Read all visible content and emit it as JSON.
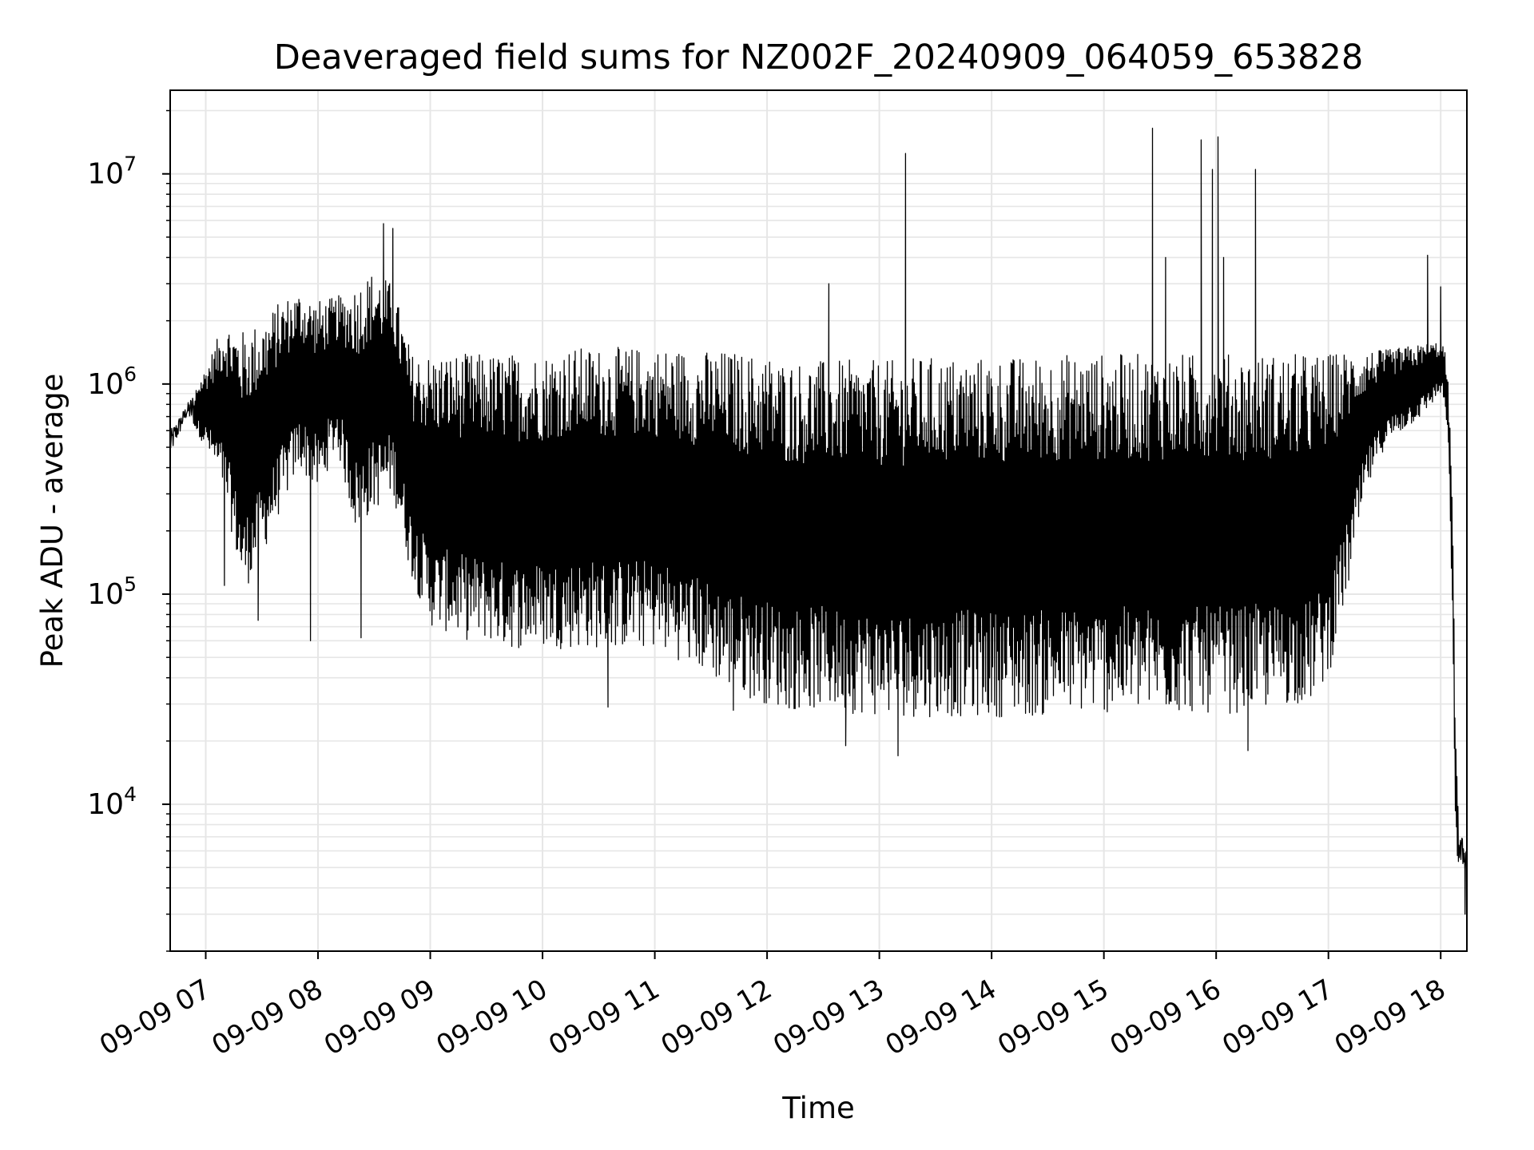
{
  "chart_data": {
    "type": "line",
    "title": "Deaveraged field sums for NZ002F_20240909_064059_653828",
    "xlabel": "Time",
    "ylabel": "Peak ADU - average",
    "x_ticks": [
      "09-09 07",
      "09-09 08",
      "09-09 09",
      "09-09 10",
      "09-09 11",
      "09-09 12",
      "09-09 13",
      "09-09 14",
      "09-09 15",
      "09-09 16",
      "09-09 17",
      "09-09 18"
    ],
    "x_tick_hours": [
      7,
      8,
      9,
      10,
      11,
      12,
      13,
      14,
      15,
      16,
      17,
      18
    ],
    "xlim": [
      "09-09 06:41",
      "09-09 18:14"
    ],
    "y_scale": "log",
    "ylim": [
      2000,
      25000000
    ],
    "y_ticks": [
      {
        "value": 10000,
        "base": "10",
        "exp": "4"
      },
      {
        "value": 100000,
        "base": "10",
        "exp": "5"
      },
      {
        "value": 1000000,
        "base": "10",
        "exp": "6"
      },
      {
        "value": 10000000,
        "base": "10",
        "exp": "7"
      }
    ],
    "grid": true,
    "line_color": "#000000",
    "grid_color": "#e6e6e6",
    "series": [
      {
        "envelope": {
          "x": [
            "06:41",
            "06:50",
            "07:00",
            "07:10",
            "07:20",
            "07:30",
            "07:40",
            "07:50",
            "08:00",
            "08:10",
            "08:20",
            "08:30",
            "08:40",
            "08:50",
            "09:00",
            "09:10",
            "09:20",
            "09:30",
            "09:40",
            "09:50",
            "10:00",
            "10:10",
            "10:20",
            "10:30",
            "10:40",
            "10:50",
            "11:00",
            "11:10",
            "11:20",
            "11:30",
            "11:40",
            "11:50",
            "12:00",
            "12:10",
            "12:20",
            "12:30",
            "12:40",
            "12:50",
            "13:00",
            "13:10",
            "13:20",
            "13:30",
            "13:40",
            "13:50",
            "14:00",
            "14:10",
            "14:20",
            "14:30",
            "14:40",
            "14:50",
            "15:00",
            "15:10",
            "15:20",
            "15:30",
            "15:40",
            "15:50",
            "16:00",
            "16:10",
            "16:20",
            "16:30",
            "16:40",
            "16:50",
            "17:00",
            "17:10",
            "17:20",
            "17:30",
            "17:40",
            "17:50",
            "18:00",
            "18:02",
            "18:04",
            "18:06",
            "18:08",
            "18:10",
            "18:12",
            "18:14"
          ],
          "upper": [
            600000,
            800000,
            1200000,
            2000000,
            1800000,
            2000000,
            2500000,
            2800000,
            2500000,
            2600000,
            3000000,
            3500000,
            3000000,
            1400000,
            1400000,
            1400000,
            1400000,
            1400000,
            1400000,
            1400000,
            1400000,
            1500000,
            1500000,
            1500000,
            1500000,
            1500000,
            1500000,
            1500000,
            1450000,
            1450000,
            1450000,
            1400000,
            1400000,
            1300000,
            1300000,
            1300000,
            1300000,
            1300000,
            1300000,
            1300000,
            1350000,
            1350000,
            1350000,
            1350000,
            1350000,
            1350000,
            1350000,
            1400000,
            1400000,
            1400000,
            1400000,
            1400000,
            1400000,
            1400000,
            1400000,
            1400000,
            1400000,
            1400000,
            1400000,
            1400000,
            1400000,
            1400000,
            1400000,
            1450000,
            1450000,
            1450000,
            1500000,
            1550000,
            1600000,
            1500000,
            1000000,
            400000,
            20000,
            7000,
            7000,
            6500
          ],
          "lower": [
            450000,
            700000,
            500000,
            300000,
            100000,
            150000,
            250000,
            400000,
            300000,
            500000,
            200000,
            250000,
            300000,
            120000,
            70000,
            65000,
            60000,
            60000,
            55000,
            55000,
            55000,
            55000,
            55000,
            55000,
            55000,
            55000,
            55000,
            50000,
            45000,
            40000,
            35000,
            32000,
            30000,
            28000,
            28000,
            28000,
            27000,
            27000,
            26000,
            26000,
            26000,
            26000,
            26000,
            26000,
            26000,
            26000,
            26000,
            26000,
            27000,
            27000,
            27000,
            27000,
            27000,
            27000,
            27000,
            27000,
            27000,
            27000,
            28000,
            28000,
            30000,
            30000,
            40000,
            100000,
            300000,
            500000,
            600000,
            700000,
            900000,
            800000,
            500000,
            100000,
            6000,
            5000,
            5000,
            4500
          ]
        },
        "spikes": [
          {
            "t": "08:35",
            "value": 5800000
          },
          {
            "t": "08:40",
            "value": 5500000
          },
          {
            "t": "12:33",
            "value": 3000000
          },
          {
            "t": "13:14",
            "value": 12500000
          },
          {
            "t": "15:26",
            "value": 16500000
          },
          {
            "t": "15:33",
            "value": 4000000
          },
          {
            "t": "15:52",
            "value": 14500000
          },
          {
            "t": "15:58",
            "value": 10500000
          },
          {
            "t": "16:01",
            "value": 15000000
          },
          {
            "t": "16:04",
            "value": 4000000
          },
          {
            "t": "16:21",
            "value": 10500000
          },
          {
            "t": "17:53",
            "value": 4100000
          },
          {
            "t": "18:00",
            "value": 2900000
          }
        ],
        "dips": [
          {
            "t": "07:10",
            "value": 110000
          },
          {
            "t": "07:28",
            "value": 75000
          },
          {
            "t": "07:56",
            "value": 60000
          },
          {
            "t": "08:23",
            "value": 62000
          },
          {
            "t": "10:35",
            "value": 29000
          },
          {
            "t": "11:42",
            "value": 28000
          },
          {
            "t": "12:42",
            "value": 19000
          },
          {
            "t": "13:10",
            "value": 17000
          },
          {
            "t": "16:17",
            "value": 18000
          },
          {
            "t": "18:13",
            "value": 3000
          }
        ]
      }
    ]
  }
}
